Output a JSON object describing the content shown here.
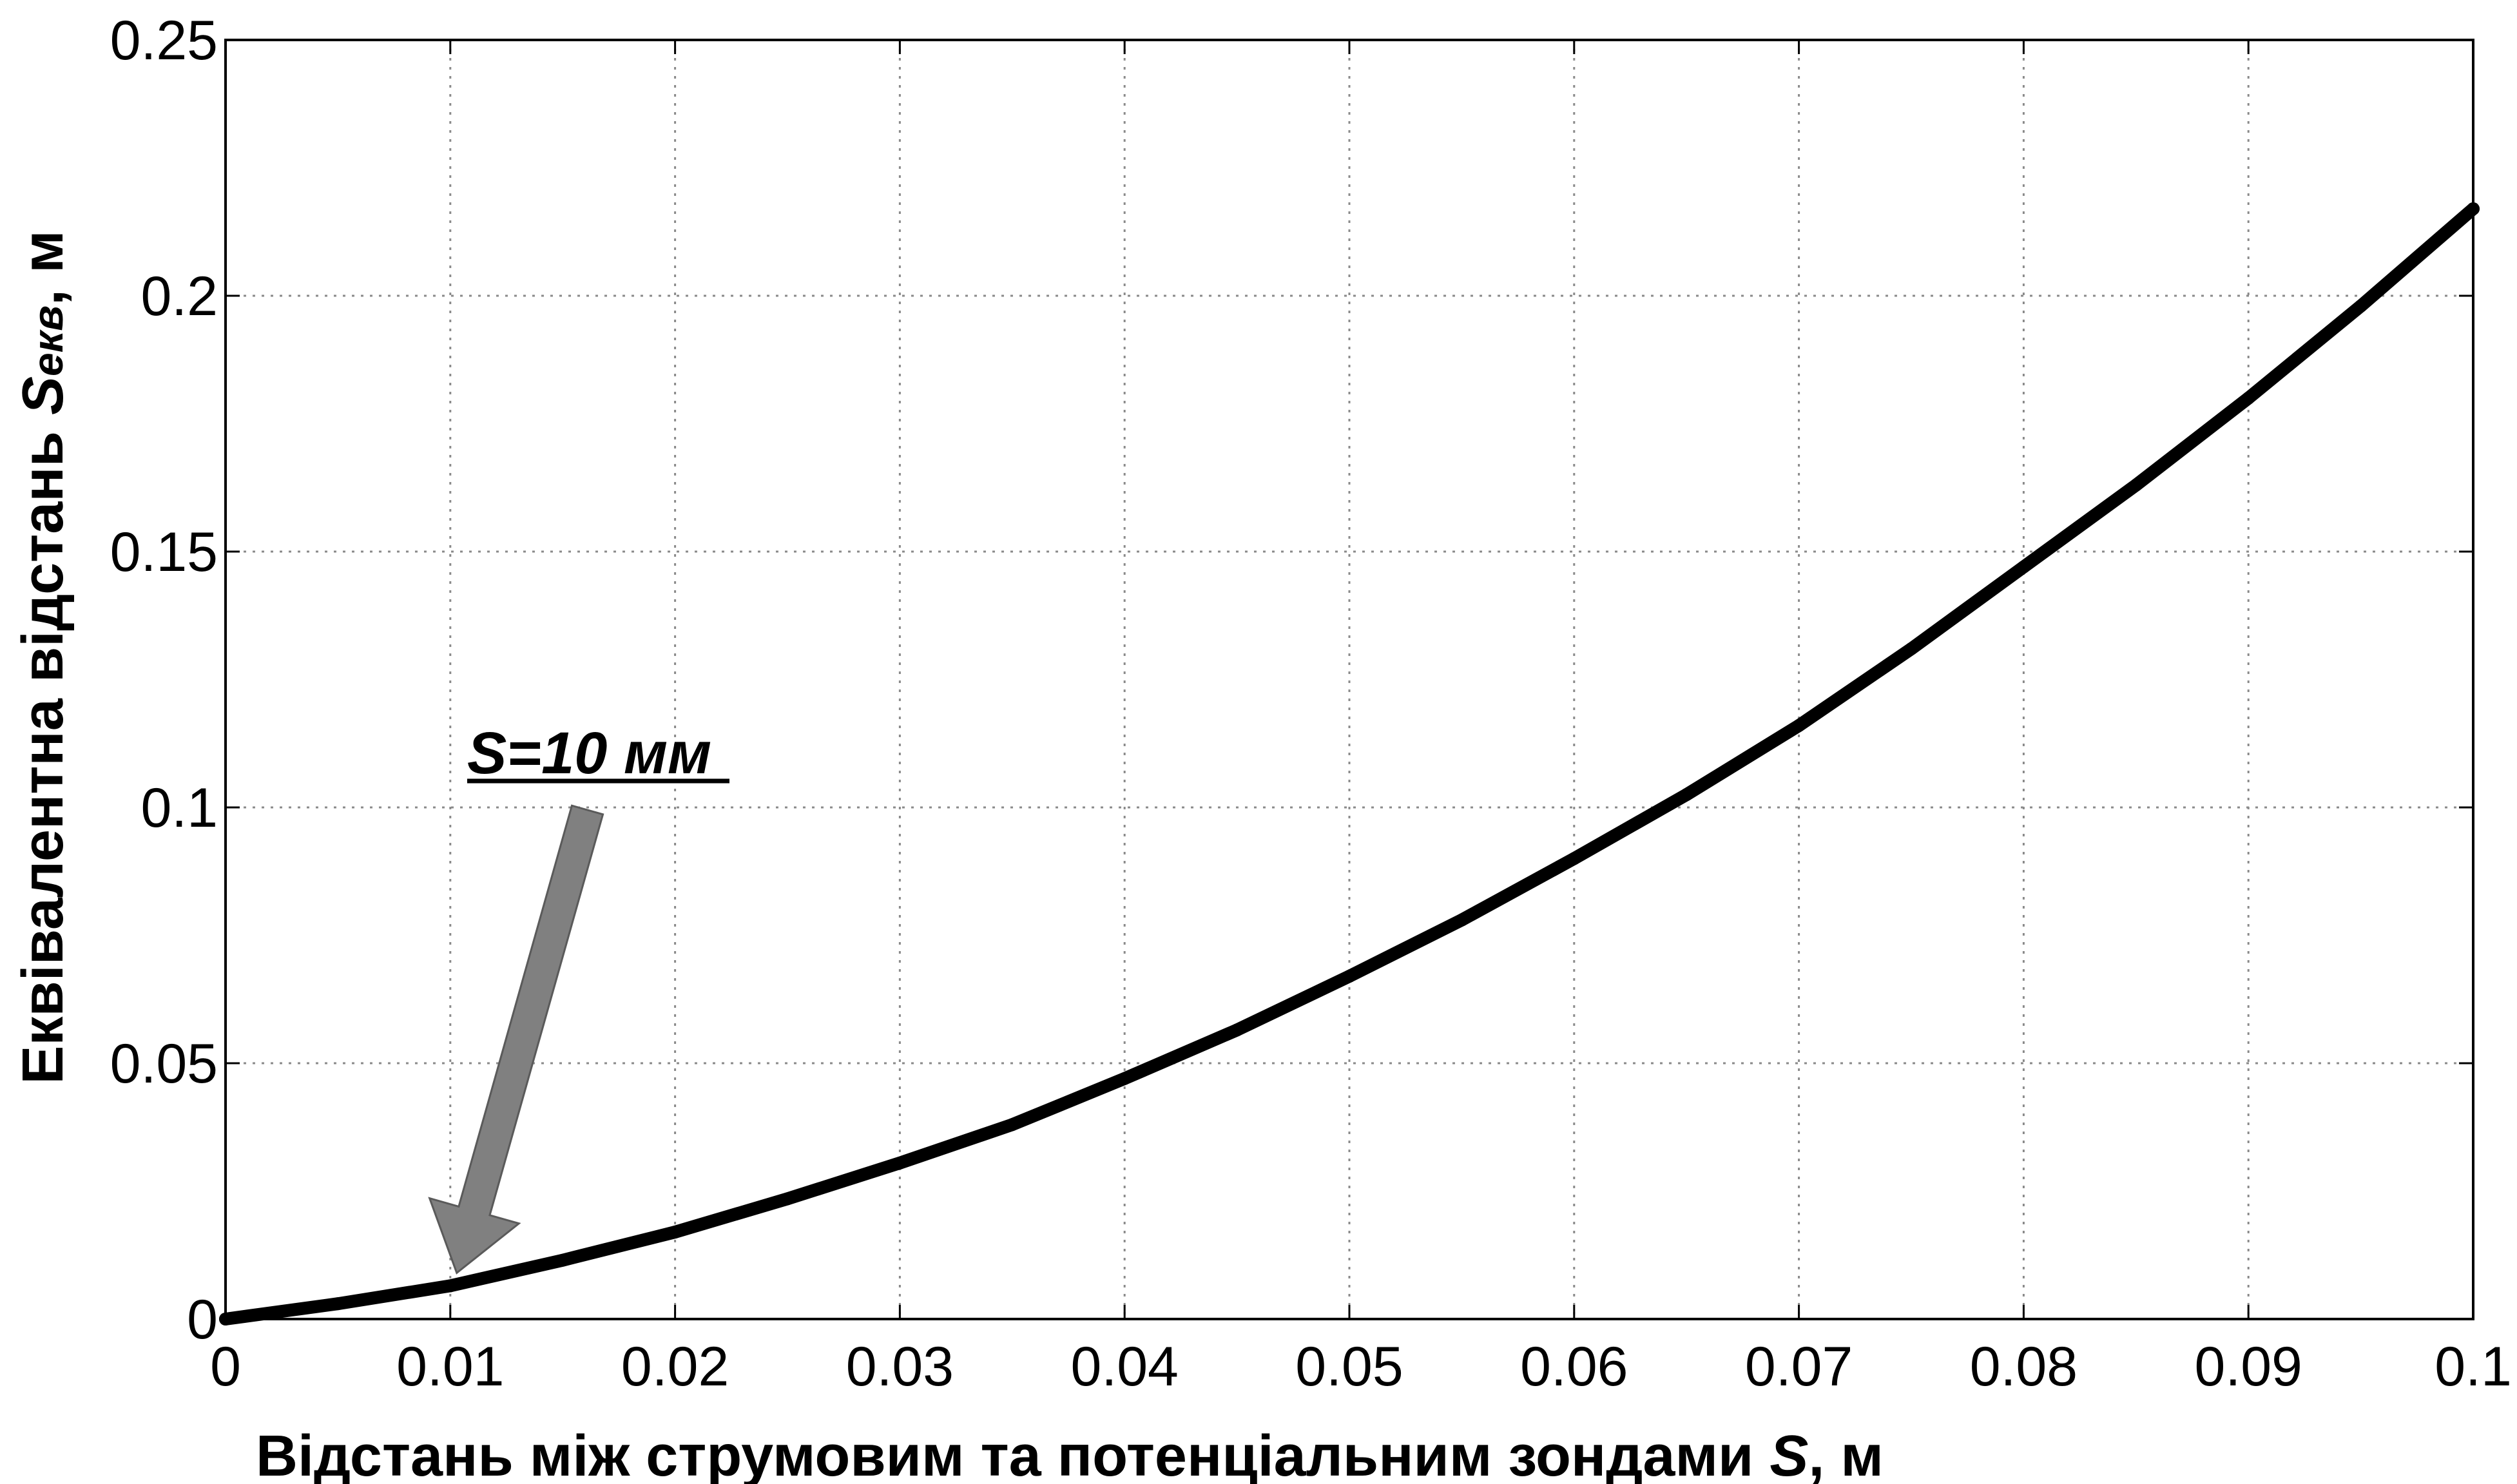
{
  "chart_data": {
    "type": "line",
    "xlabel_main": "Відстань між струмовим та потенціальним зондами ",
    "xlabel_var": "S",
    "xlabel_unit": ", м",
    "ylabel_main": "Еквівалентна відстань ",
    "ylabel_var": "S",
    "ylabel_sub": "екв",
    "ylabel_unit": ", м",
    "xlim": [
      0,
      0.1
    ],
    "ylim": [
      0,
      0.25
    ],
    "x_ticks": [
      "0",
      "0.01",
      "0.02",
      "0.03",
      "0.04",
      "0.05",
      "0.06",
      "0.07",
      "0.08",
      "0.09",
      "0.1"
    ],
    "y_ticks": [
      "0",
      "0.05",
      "0.1",
      "0.15",
      "0.2",
      "0.25"
    ],
    "grid": true,
    "line_color": "#000000",
    "series": [
      {
        "x": [
          0,
          0.005,
          0.01,
          0.015,
          0.02,
          0.025,
          0.03,
          0.035,
          0.04,
          0.045,
          0.05,
          0.055,
          0.06,
          0.065,
          0.07,
          0.075,
          0.08,
          0.085,
          0.09,
          0.095,
          0.1
        ],
        "y": [
          0,
          0.003,
          0.0065,
          0.0115,
          0.017,
          0.0235,
          0.0305,
          0.038,
          0.047,
          0.0565,
          0.067,
          0.078,
          0.09,
          0.1025,
          0.116,
          0.131,
          0.147,
          0.163,
          0.18,
          0.198,
          0.217
        ]
      }
    ],
    "annotation": {
      "text": "S=10 мм",
      "x": 0.01,
      "y": 0.0065,
      "arrow_color": "#808080"
    }
  }
}
